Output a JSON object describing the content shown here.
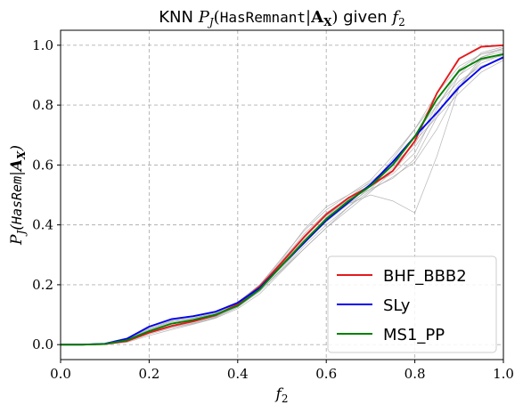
{
  "chart_data": {
    "type": "line",
    "title": "KNN P_J(HasRemnant|A_X) given f_2",
    "title_parts": {
      "prefix": "KNN ",
      "func": "P",
      "func_sub": "J",
      "arg_open": "(",
      "arg_mono": "HasRemnant",
      "arg_bar": "|",
      "arg_bold": "A",
      "arg_bold_sub": "X",
      "arg_close": ")",
      "middle": " given ",
      "var": "f",
      "var_sub": "2"
    },
    "xlabel": "f_2",
    "xlabel_parts": {
      "var": "f",
      "sub": "2"
    },
    "ylabel": "P_J(HasRem|A_X)",
    "ylabel_parts": {
      "func": "P",
      "func_sub": "J",
      "open": "(",
      "mono": "HasRem",
      "bar": "|",
      "bold": "A",
      "bold_sub": "X",
      "close": ")"
    },
    "xlim": [
      0,
      1
    ],
    "ylim": [
      -0.05,
      1.05
    ],
    "xticks": [
      0.0,
      0.2,
      0.4,
      0.6,
      0.8,
      1.0
    ],
    "xtick_labels": [
      "0.0",
      "0.2",
      "0.4",
      "0.6",
      "0.8",
      "1.0"
    ],
    "yticks": [
      0.0,
      0.2,
      0.4,
      0.6,
      0.8,
      1.0
    ],
    "ytick_labels": [
      "0.0",
      "0.2",
      "0.4",
      "0.6",
      "0.8",
      "1.0"
    ],
    "grid": true,
    "legend_position": "bottom-right",
    "x": [
      0.0,
      0.05,
      0.1,
      0.15,
      0.2,
      0.25,
      0.3,
      0.35,
      0.4,
      0.45,
      0.5,
      0.55,
      0.6,
      0.65,
      0.7,
      0.75,
      0.8,
      0.85,
      0.9,
      0.95,
      1.0
    ],
    "series": [
      {
        "name": "BHF_BBB2",
        "color": "#e41a1c",
        "values": [
          0.0,
          0.0,
          0.002,
          0.012,
          0.04,
          0.062,
          0.078,
          0.098,
          0.135,
          0.195,
          0.275,
          0.36,
          0.435,
          0.49,
          0.53,
          0.58,
          0.68,
          0.84,
          0.955,
          0.995,
          1.0
        ]
      },
      {
        "name": "SLy",
        "color": "#0000ee",
        "values": [
          0.0,
          0.0,
          0.003,
          0.02,
          0.06,
          0.085,
          0.095,
          0.11,
          0.14,
          0.19,
          0.265,
          0.34,
          0.415,
          0.475,
          0.535,
          0.61,
          0.695,
          0.775,
          0.86,
          0.925,
          0.96
        ]
      },
      {
        "name": "MS1_PP",
        "color": "#008000",
        "values": [
          0.0,
          0.0,
          0.002,
          0.015,
          0.045,
          0.07,
          0.083,
          0.1,
          0.13,
          0.185,
          0.265,
          0.345,
          0.42,
          0.48,
          0.53,
          0.6,
          0.695,
          0.82,
          0.915,
          0.955,
          0.97
        ]
      }
    ],
    "background_series": [
      {
        "values": [
          0.0,
          0.0,
          0.002,
          0.01,
          0.035,
          0.055,
          0.07,
          0.09,
          0.125,
          0.18,
          0.25,
          0.33,
          0.4,
          0.46,
          0.515,
          0.56,
          0.61,
          0.72,
          0.86,
          0.95,
          0.975
        ]
      },
      {
        "values": [
          0.0,
          0.0,
          0.003,
          0.018,
          0.055,
          0.08,
          0.09,
          0.105,
          0.14,
          0.2,
          0.285,
          0.385,
          0.46,
          0.5,
          0.54,
          0.6,
          0.7,
          0.8,
          0.88,
          0.93,
          0.955
        ]
      },
      {
        "values": [
          0.0,
          0.0,
          0.002,
          0.012,
          0.04,
          0.06,
          0.075,
          0.095,
          0.13,
          0.19,
          0.27,
          0.35,
          0.42,
          0.47,
          0.5,
          0.48,
          0.44,
          0.63,
          0.86,
          0.96,
          0.99
        ]
      },
      {
        "values": [
          0.0,
          0.0,
          0.001,
          0.008,
          0.03,
          0.05,
          0.068,
          0.088,
          0.12,
          0.17,
          0.245,
          0.32,
          0.39,
          0.45,
          0.51,
          0.58,
          0.66,
          0.77,
          0.87,
          0.94,
          0.97
        ]
      },
      {
        "values": [
          0.0,
          0.0,
          0.003,
          0.016,
          0.05,
          0.075,
          0.088,
          0.102,
          0.138,
          0.2,
          0.29,
          0.38,
          0.45,
          0.5,
          0.55,
          0.63,
          0.72,
          0.82,
          0.91,
          0.96,
          0.98
        ]
      },
      {
        "values": [
          0.0,
          0.0,
          0.002,
          0.014,
          0.045,
          0.068,
          0.08,
          0.097,
          0.128,
          0.18,
          0.25,
          0.32,
          0.39,
          0.46,
          0.53,
          0.62,
          0.72,
          0.84,
          0.93,
          0.97,
          0.985
        ]
      },
      {
        "values": [
          0.0,
          0.0,
          0.002,
          0.011,
          0.038,
          0.058,
          0.072,
          0.092,
          0.132,
          0.195,
          0.28,
          0.37,
          0.44,
          0.49,
          0.535,
          0.57,
          0.64,
          0.79,
          0.92,
          0.97,
          0.99
        ]
      },
      {
        "values": [
          0.0,
          0.0,
          0.003,
          0.017,
          0.052,
          0.078,
          0.09,
          0.105,
          0.142,
          0.2,
          0.27,
          0.34,
          0.41,
          0.47,
          0.52,
          0.59,
          0.68,
          0.76,
          0.84,
          0.91,
          0.95
        ]
      },
      {
        "values": [
          0.0,
          0.0,
          0.002,
          0.013,
          0.042,
          0.064,
          0.077,
          0.094,
          0.126,
          0.178,
          0.255,
          0.34,
          0.425,
          0.49,
          0.545,
          0.6,
          0.67,
          0.8,
          0.9,
          0.95,
          0.965
        ]
      },
      {
        "values": [
          0.0,
          0.0,
          0.002,
          0.012,
          0.04,
          0.062,
          0.076,
          0.096,
          0.134,
          0.192,
          0.272,
          0.355,
          0.43,
          0.485,
          0.52,
          0.555,
          0.62,
          0.76,
          0.9,
          0.975,
          0.995
        ]
      }
    ]
  }
}
